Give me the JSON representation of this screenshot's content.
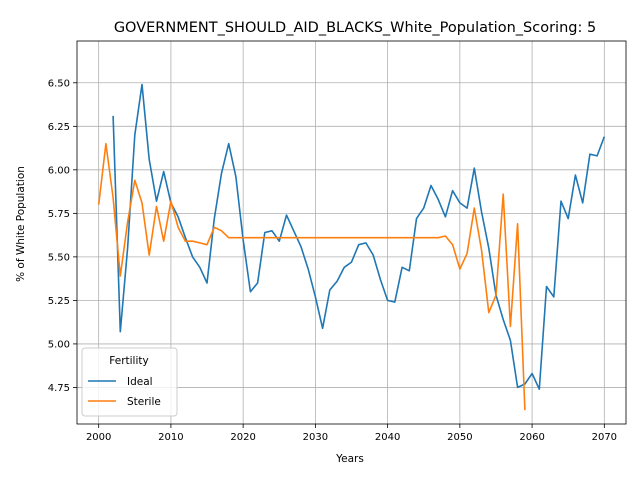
{
  "chart_data": {
    "type": "line",
    "title": "GOVERNMENT_SHOULD_AID_BLACKS_White_Population_Scoring: 5",
    "xlabel": "Years",
    "ylabel": "% of White Population",
    "xlim": [
      1997,
      2073
    ],
    "ylim": [
      4.54,
      6.74
    ],
    "xticks": [
      2000,
      2010,
      2020,
      2030,
      2040,
      2050,
      2060,
      2070
    ],
    "yticks": [
      4.75,
      5.0,
      5.25,
      5.5,
      5.75,
      6.0,
      6.25,
      6.5
    ],
    "ytick_labels": [
      "4.75",
      "5.00",
      "5.25",
      "5.50",
      "5.75",
      "6.00",
      "6.25",
      "6.50"
    ],
    "grid": true,
    "legend": {
      "title": "Fertility",
      "placement": "lower-left"
    },
    "series": [
      {
        "name": "Ideal",
        "color": "#1f77b4",
        "x": [
          2002,
          2003,
          2004,
          2005,
          2006,
          2007,
          2008,
          2009,
          2010,
          2011,
          2012,
          2013,
          2014,
          2015,
          2016,
          2017,
          2018,
          2019,
          2020,
          2021,
          2022,
          2023,
          2024,
          2025,
          2026,
          2027,
          2028,
          2029,
          2030,
          2031,
          2032,
          2033,
          2034,
          2035,
          2036,
          2037,
          2038,
          2039,
          2040,
          2041,
          2042,
          2043,
          2044,
          2045,
          2046,
          2047,
          2048,
          2049,
          2050,
          2051,
          2052,
          2053,
          2054,
          2055,
          2056,
          2057,
          2058,
          2059,
          2060,
          2061,
          2062,
          2063,
          2064,
          2065,
          2066,
          2067,
          2068,
          2069,
          2070
        ],
        "y": [
          6.31,
          5.07,
          5.55,
          6.2,
          6.49,
          6.06,
          5.82,
          5.99,
          5.81,
          5.73,
          5.61,
          5.5,
          5.44,
          5.35,
          5.72,
          5.98,
          6.15,
          5.96,
          5.6,
          5.3,
          5.35,
          5.64,
          5.65,
          5.59,
          5.74,
          5.65,
          5.56,
          5.43,
          5.27,
          5.09,
          5.31,
          5.36,
          5.44,
          5.47,
          5.57,
          5.58,
          5.51,
          5.37,
          5.25,
          5.24,
          5.44,
          5.42,
          5.72,
          5.78,
          5.91,
          5.83,
          5.73,
          5.88,
          5.81,
          5.78,
          6.01,
          5.76,
          5.55,
          5.28,
          5.14,
          5.02,
          4.75,
          4.77,
          4.83,
          4.74,
          5.33,
          5.27,
          5.82,
          5.72,
          5.97,
          5.81,
          6.09,
          6.08,
          6.19
        ]
      },
      {
        "name": "Sterile",
        "color": "#ff7f0e",
        "x": [
          2000,
          2001,
          2002,
          2003,
          2004,
          2005,
          2006,
          2007,
          2008,
          2009,
          2010,
          2011,
          2012,
          2013,
          2014,
          2015,
          2016,
          2017,
          2018,
          2019,
          2020,
          2021,
          2022,
          2023,
          2024,
          2025,
          2026,
          2027,
          2028,
          2029,
          2030,
          2031,
          2032,
          2033,
          2034,
          2035,
          2036,
          2037,
          2038,
          2039,
          2040,
          2041,
          2042,
          2043,
          2044,
          2045,
          2046,
          2047,
          2048,
          2049,
          2050,
          2051,
          2052,
          2053,
          2054,
          2055,
          2056,
          2057,
          2058,
          2059
        ],
        "y": [
          5.8,
          6.15,
          5.84,
          5.39,
          5.7,
          5.94,
          5.81,
          5.51,
          5.79,
          5.59,
          5.82,
          5.67,
          5.59,
          5.59,
          5.58,
          5.57,
          5.67,
          5.65,
          5.61,
          5.61,
          5.61,
          5.61,
          5.61,
          5.61,
          5.61,
          5.61,
          5.61,
          5.61,
          5.61,
          5.61,
          5.61,
          5.61,
          5.61,
          5.61,
          5.61,
          5.61,
          5.61,
          5.61,
          5.61,
          5.61,
          5.61,
          5.61,
          5.61,
          5.61,
          5.61,
          5.61,
          5.61,
          5.61,
          5.62,
          5.57,
          5.43,
          5.52,
          5.78,
          5.54,
          5.18,
          5.28,
          5.86,
          5.1,
          5.69,
          4.62
        ]
      }
    ]
  }
}
